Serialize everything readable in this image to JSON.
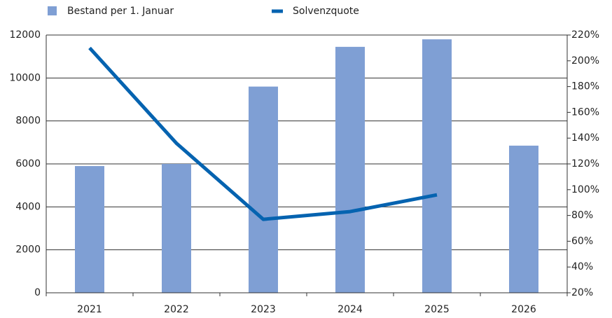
{
  "chart_data": {
    "type": "bar_line",
    "categories": [
      "2021",
      "2022",
      "2023",
      "2024",
      "2025",
      "2026"
    ],
    "series": [
      {
        "name": "Bestand per 1. Januar",
        "type": "bar",
        "color": "#7f9fd4",
        "values": [
          5900,
          6000,
          9600,
          11450,
          11800,
          6850
        ]
      },
      {
        "name": "Solvenzquote",
        "type": "line",
        "axis": "y2",
        "color": "#0563b0",
        "values": [
          210,
          136,
          77,
          83,
          96,
          null
        ]
      }
    ],
    "ylim": [
      0,
      12000
    ],
    "yticks": [
      0,
      2000,
      4000,
      6000,
      8000,
      10000,
      12000
    ],
    "y2lim": [
      20,
      220
    ],
    "y2ticks": [
      {
        "value": 20,
        "label": "20%"
      },
      {
        "value": 40,
        "label": "40%"
      },
      {
        "value": 60,
        "label": "60%"
      },
      {
        "value": 80,
        "label": "80%"
      },
      {
        "value": 100,
        "label": "100%"
      },
      {
        "value": 120,
        "label": "120%"
      },
      {
        "value": 140,
        "label": "140%"
      },
      {
        "value": 160,
        "label": "160%"
      },
      {
        "value": 180,
        "label": "180%"
      },
      {
        "value": 200,
        "label": "200%"
      },
      {
        "value": 220,
        "label": "220%"
      }
    ],
    "grid": true,
    "legend": "top"
  }
}
